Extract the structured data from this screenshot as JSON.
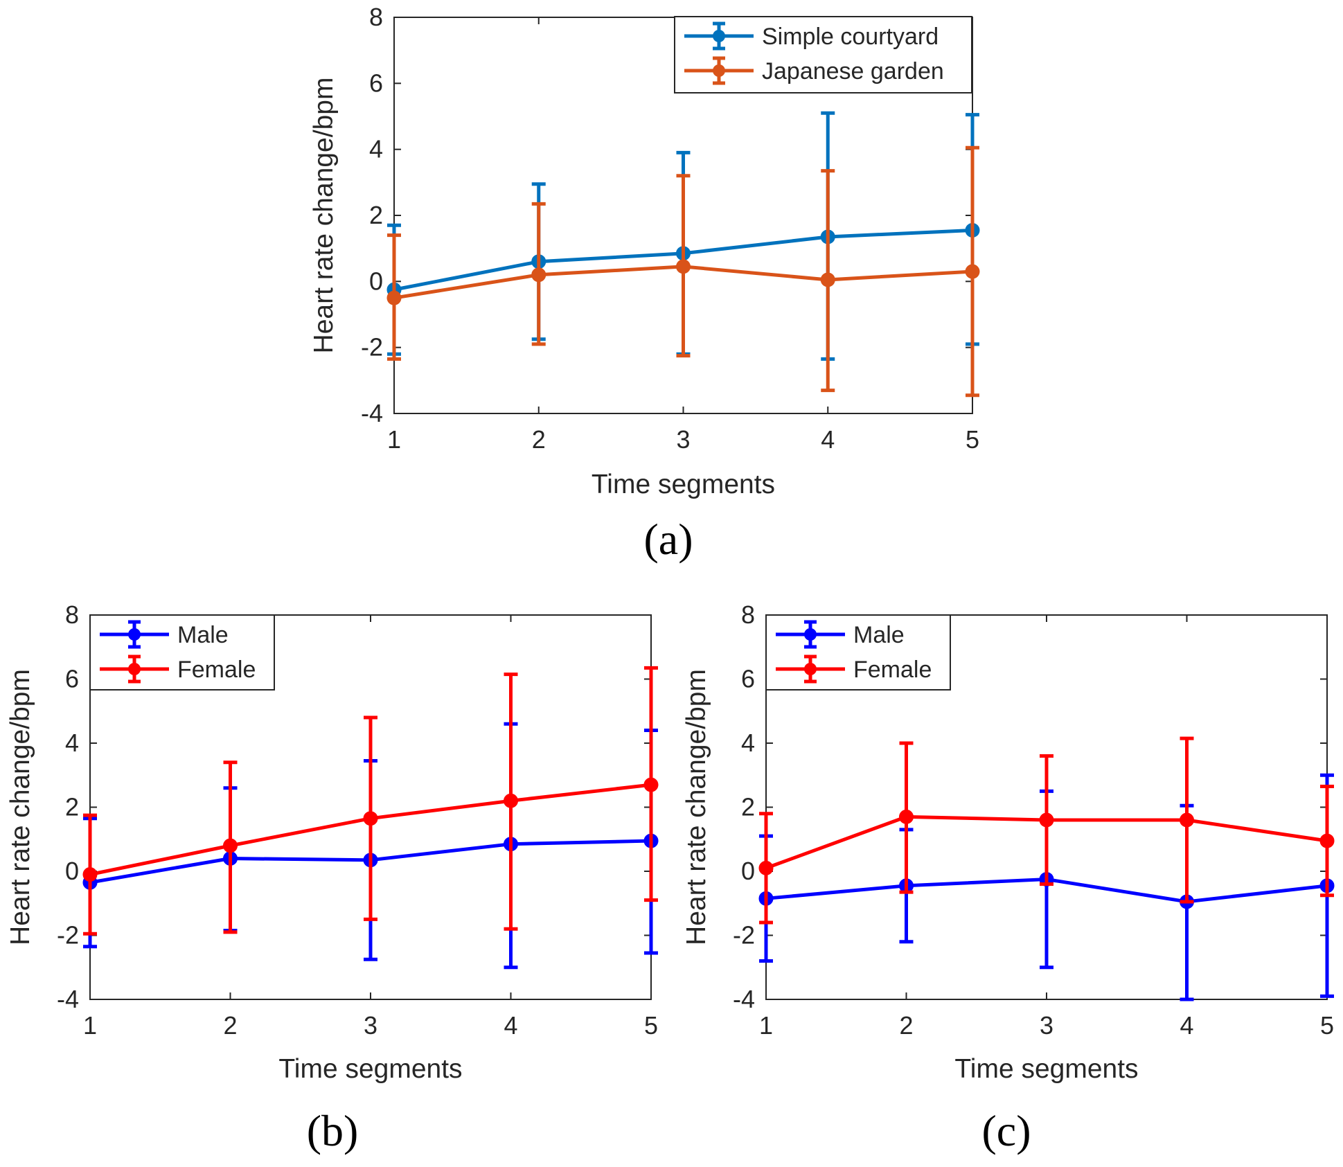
{
  "chart_data": [
    {
      "id": "a",
      "type": "line",
      "caption": "(a)",
      "xlabel": "Time segments",
      "ylabel": "Heart rate change/bpm",
      "x": [
        1,
        2,
        3,
        4,
        5
      ],
      "xticks": [
        "1",
        "2",
        "3",
        "4",
        "5"
      ],
      "yticks": [
        "-4",
        "-2",
        "0",
        "2",
        "4",
        "6",
        "8"
      ],
      "xlim": [
        1,
        5
      ],
      "ylim": [
        -4,
        8
      ],
      "legend_position": "top-right",
      "series": [
        {
          "name": "Simple courtyard",
          "color": "#0072BD",
          "values": [
            -0.25,
            0.6,
            0.85,
            1.35,
            1.55
          ],
          "error_low": [
            -2.2,
            -1.75,
            -2.2,
            -2.35,
            -1.9
          ],
          "error_high": [
            1.7,
            2.95,
            3.9,
            5.1,
            5.05
          ]
        },
        {
          "name": "Japanese garden",
          "color": "#D95319",
          "values": [
            -0.5,
            0.2,
            0.45,
            0.05,
            0.3
          ],
          "error_low": [
            -2.35,
            -1.9,
            -2.25,
            -3.3,
            -3.45
          ],
          "error_high": [
            1.4,
            2.35,
            3.2,
            3.35,
            4.05
          ]
        }
      ]
    },
    {
      "id": "b",
      "type": "line",
      "caption": "(b)",
      "xlabel": "Time segments",
      "ylabel": "Heart rate change/bpm",
      "x": [
        1,
        2,
        3,
        4,
        5
      ],
      "xticks": [
        "1",
        "2",
        "3",
        "4",
        "5"
      ],
      "yticks": [
        "-4",
        "-2",
        "0",
        "2",
        "4",
        "6",
        "8"
      ],
      "xlim": [
        1,
        5
      ],
      "ylim": [
        -4,
        8
      ],
      "legend_position": "top-left",
      "series": [
        {
          "name": "Male",
          "color": "#0000FF",
          "values": [
            -0.35,
            0.4,
            0.35,
            0.85,
            0.95
          ],
          "error_low": [
            -2.35,
            -1.85,
            -2.75,
            -3.0,
            -2.55
          ],
          "error_high": [
            1.65,
            2.6,
            3.45,
            4.6,
            4.4
          ]
        },
        {
          "name": "Female",
          "color": "#FF0000",
          "values": [
            -0.1,
            0.8,
            1.65,
            2.2,
            2.7
          ],
          "error_low": [
            -1.95,
            -1.9,
            -1.5,
            -1.8,
            -0.9
          ],
          "error_high": [
            1.75,
            3.4,
            4.8,
            6.15,
            6.35
          ]
        }
      ]
    },
    {
      "id": "c",
      "type": "line",
      "caption": "(c)",
      "xlabel": "Time segments",
      "ylabel": "Heart rate change/bpm",
      "x": [
        1,
        2,
        3,
        4,
        5
      ],
      "xticks": [
        "1",
        "2",
        "3",
        "4",
        "5"
      ],
      "yticks": [
        "-4",
        "-2",
        "0",
        "2",
        "4",
        "6",
        "8"
      ],
      "xlim": [
        1,
        5
      ],
      "ylim": [
        -4,
        8
      ],
      "legend_position": "top-left",
      "series": [
        {
          "name": "Male",
          "color": "#0000FF",
          "values": [
            -0.85,
            -0.45,
            -0.25,
            -0.95,
            -0.45
          ],
          "error_low": [
            -2.8,
            -2.2,
            -3.0,
            -4.0,
            -3.9
          ],
          "error_high": [
            1.1,
            1.3,
            2.5,
            2.05,
            3.0
          ]
        },
        {
          "name": "Female",
          "color": "#FF0000",
          "values": [
            0.1,
            1.7,
            1.6,
            1.6,
            0.95
          ],
          "error_low": [
            -1.6,
            -0.65,
            -0.4,
            -0.95,
            -0.75
          ],
          "error_high": [
            1.8,
            4.0,
            3.6,
            4.15,
            2.65
          ]
        }
      ]
    }
  ]
}
